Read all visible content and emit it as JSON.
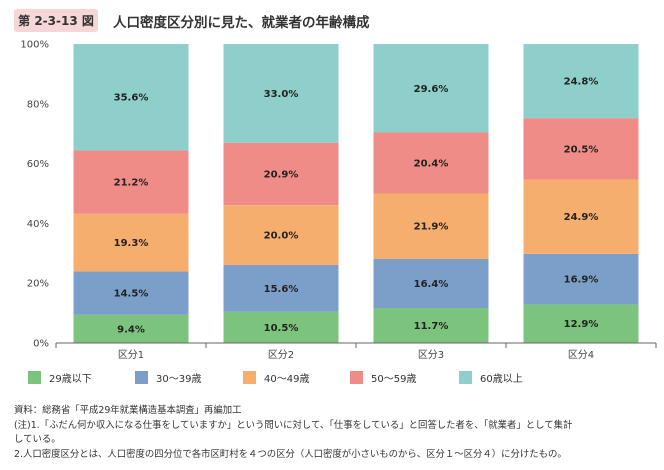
{
  "figure": {
    "number": "第 2-3-13 図",
    "title": "人口密度区分別に見た、就業者の年齢構成"
  },
  "colors": {
    "badge": "#f6d6d6",
    "series": [
      "#7cc47d",
      "#7b9fc8",
      "#f5ae6e",
      "#f08c87",
      "#8ecfcb"
    ]
  },
  "chart_data": {
    "type": "bar",
    "stacked": true,
    "categories": [
      "区分1",
      "区分2",
      "区分3",
      "区分4"
    ],
    "series": [
      {
        "name": "29歳以下",
        "values": [
          9.4,
          10.5,
          11.7,
          12.9
        ]
      },
      {
        "name": "30～39歳",
        "values": [
          14.5,
          15.6,
          16.4,
          16.9
        ]
      },
      {
        "name": "40～49歳",
        "values": [
          19.3,
          20.0,
          21.9,
          24.9
        ]
      },
      {
        "name": "50～59歳",
        "values": [
          21.2,
          20.9,
          20.4,
          20.5
        ]
      },
      {
        "name": "60歳以上",
        "values": [
          35.6,
          33.0,
          29.6,
          24.8
        ]
      }
    ],
    "ylim": [
      0,
      100
    ],
    "yticks": [
      "0%",
      "20%",
      "40%",
      "60%",
      "80%",
      "100%"
    ],
    "legend_position": "bottom",
    "grid": false
  },
  "notes": [
    "資料：総務省「平成29年就業構造基本調査」再編加工",
    "(注)1.「ふだん何か収入になる仕事をしていますか」という問いに対して、「仕事をしている」と回答した者を、「就業者」として集計",
    "している。",
    "2.人口密度区分とは、人口密度の四分位で各市区町村を４つの区分（人口密度が小さいものから、区分１～区分４）に分けたもの。"
  ]
}
